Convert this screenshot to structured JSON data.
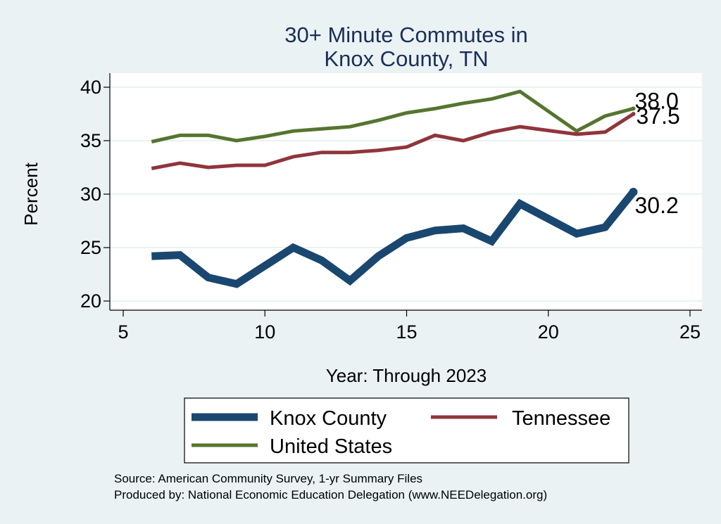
{
  "chart_data": {
    "type": "line",
    "title_lines": [
      "30+ Minute Commutes in",
      "Knox County, TN"
    ],
    "xlabel": "Year: Through 2023",
    "ylabel": "Percent",
    "xlim": [
      5,
      25
    ],
    "ylim": [
      20,
      40
    ],
    "xticks": [
      5,
      10,
      15,
      20,
      25
    ],
    "yticks": [
      20,
      25,
      30,
      35,
      40
    ],
    "grid": true,
    "legend_position": "bottom",
    "x": [
      6,
      7,
      8,
      9,
      10,
      11,
      12,
      13,
      14,
      15,
      16,
      17,
      18,
      19,
      21,
      22,
      23
    ],
    "series": [
      {
        "name": "Knox County",
        "color": "#1a476f",
        "values": [
          24.2,
          24.3,
          22.2,
          21.6,
          23.3,
          25.0,
          23.8,
          21.9,
          24.2,
          25.9,
          26.6,
          26.8,
          25.6,
          29.1,
          26.3,
          26.9,
          30.2
        ],
        "end_label": "30.2"
      },
      {
        "name": "Tennessee",
        "color": "#90353b",
        "values": [
          32.4,
          32.9,
          32.5,
          32.7,
          32.7,
          33.5,
          33.9,
          33.9,
          34.1,
          34.4,
          35.5,
          35.0,
          35.8,
          36.3,
          35.6,
          35.8,
          37.5
        ],
        "end_label": "37.5"
      },
      {
        "name": "United States",
        "color": "#55752f",
        "values": [
          34.9,
          35.5,
          35.5,
          35.0,
          35.4,
          35.9,
          36.1,
          36.3,
          36.9,
          37.6,
          38.0,
          38.5,
          38.9,
          39.6,
          35.9,
          37.3,
          38.0
        ],
        "end_label": "38.0"
      }
    ],
    "legend": [
      "Knox County",
      "Tennessee",
      "United States"
    ]
  },
  "footer": {
    "source": "Source: American Community Survey, 1-yr Summary Files",
    "produced_by": "Produced by: National Economic Education Delegation (www.NEEDelegation.org)"
  },
  "colors": {
    "background": "#eaf2f3",
    "plot_background": "#ffffff",
    "grid": "#eaf2f3",
    "title": "#1a2e5a"
  }
}
